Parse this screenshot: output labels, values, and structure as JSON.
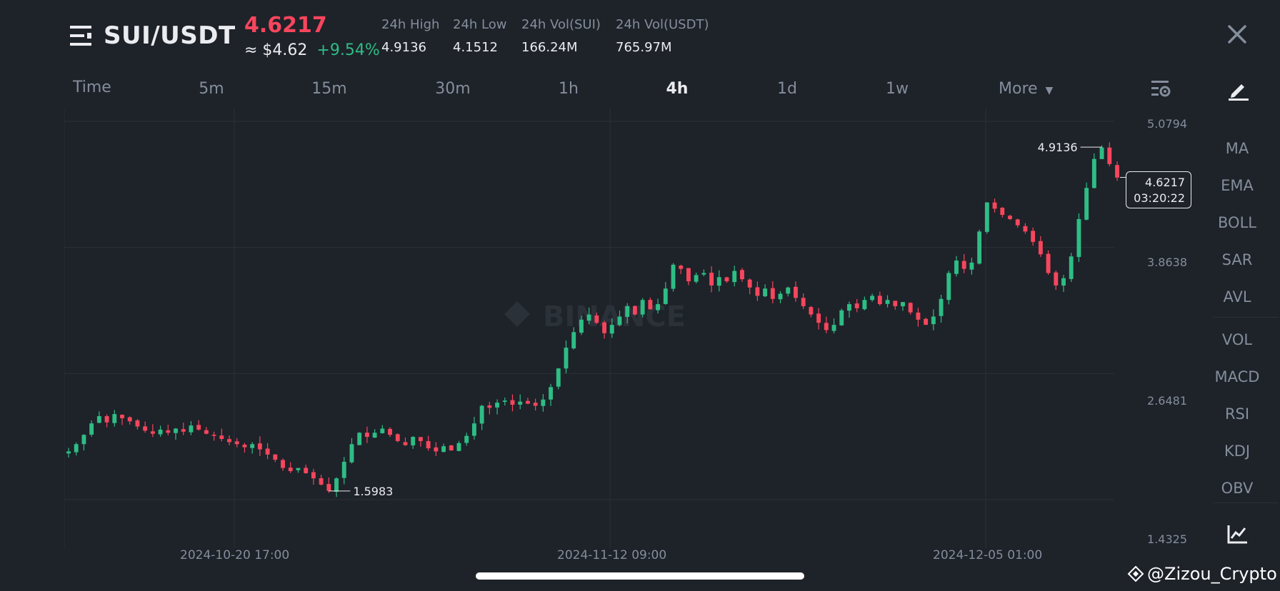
{
  "header": {
    "pair": "SUI/USDT",
    "last_price": "4.6217",
    "usd_approx": "≈ $4.62",
    "change_pct": "+9.54%",
    "stats": [
      {
        "label": "24h High",
        "value": "4.9136"
      },
      {
        "label": "24h Low",
        "value": "4.1512"
      },
      {
        "label": "24h Vol(SUI)",
        "value": "166.24M"
      },
      {
        "label": "24h Vol(USDT)",
        "value": "765.97M"
      }
    ]
  },
  "timeframes": {
    "time_label": "Time",
    "items": [
      "5m",
      "15m",
      "30m",
      "1h",
      "4h",
      "1d",
      "1w"
    ],
    "active": "4h",
    "more_label": "More"
  },
  "indicators": {
    "main": [
      "MA",
      "EMA",
      "BOLL",
      "SAR",
      "AVL"
    ],
    "sub": [
      "VOL",
      "MACD",
      "RSI",
      "KDJ",
      "OBV"
    ]
  },
  "chart_data": {
    "type": "candlestick",
    "y_axis_labels": [
      "5.0794",
      "3.8638",
      "2.6481",
      "1.4325"
    ],
    "ylim": [
      1.4325,
      5.0794
    ],
    "x_axis_labels": [
      "2024-10-20 17:00",
      "2024-11-12 09:00",
      "2024-12-05 01:00"
    ],
    "max_marker": "4.9136",
    "min_marker": "1.5983",
    "current_price": "4.6217",
    "countdown": "03:20:22",
    "up_color": "#2ebd85",
    "down_color": "#f6465d",
    "path": [
      1.98,
      2.05,
      2.14,
      2.25,
      2.32,
      2.26,
      2.34,
      2.3,
      2.27,
      2.22,
      2.18,
      2.15,
      2.19,
      2.16,
      2.2,
      2.17,
      2.23,
      2.19,
      2.15,
      2.13,
      2.1,
      2.07,
      2.05,
      2.02,
      2.05,
      2.0,
      1.95,
      1.9,
      1.82,
      1.79,
      1.82,
      1.77,
      1.72,
      1.66,
      1.6,
      1.72,
      1.88,
      2.05,
      2.16,
      2.12,
      2.16,
      2.2,
      2.14,
      2.08,
      2.04,
      2.12,
      2.08,
      2.01,
      1.98,
      2.03,
      1.99,
      2.06,
      2.13,
      2.25,
      2.42,
      2.4,
      2.45,
      2.47,
      2.43,
      2.46,
      2.44,
      2.42,
      2.48,
      2.6,
      2.78,
      2.98,
      3.13,
      3.25,
      3.3,
      3.22,
      3.12,
      3.2,
      3.28,
      3.38,
      3.3,
      3.44,
      3.35,
      3.4,
      3.55,
      3.78,
      3.74,
      3.62,
      3.68,
      3.7,
      3.58,
      3.66,
      3.62,
      3.72,
      3.64,
      3.56,
      3.48,
      3.55,
      3.45,
      3.5,
      3.56,
      3.46,
      3.38,
      3.3,
      3.22,
      3.15,
      3.2,
      3.34,
      3.4,
      3.36,
      3.44,
      3.48,
      3.4,
      3.44,
      3.38,
      3.42,
      3.32,
      3.25,
      3.2,
      3.28,
      3.45,
      3.7,
      3.82,
      3.74,
      3.8,
      4.1,
      4.38,
      4.32,
      4.26,
      4.22,
      4.16,
      4.1,
      4.0,
      3.88,
      3.7,
      3.58,
      3.65,
      3.86,
      4.22,
      4.52,
      4.8,
      4.91,
      4.75,
      4.62
    ]
  },
  "watermark": {
    "exchange": "BINANCE",
    "handle": "@Zizou_Crypto"
  },
  "colors": {
    "background": "#1e2229",
    "grid": "#2b3139",
    "text_primary": "#eaecef",
    "text_secondary": "#848e9c",
    "up": "#2ebd85",
    "down": "#f6465d"
  }
}
